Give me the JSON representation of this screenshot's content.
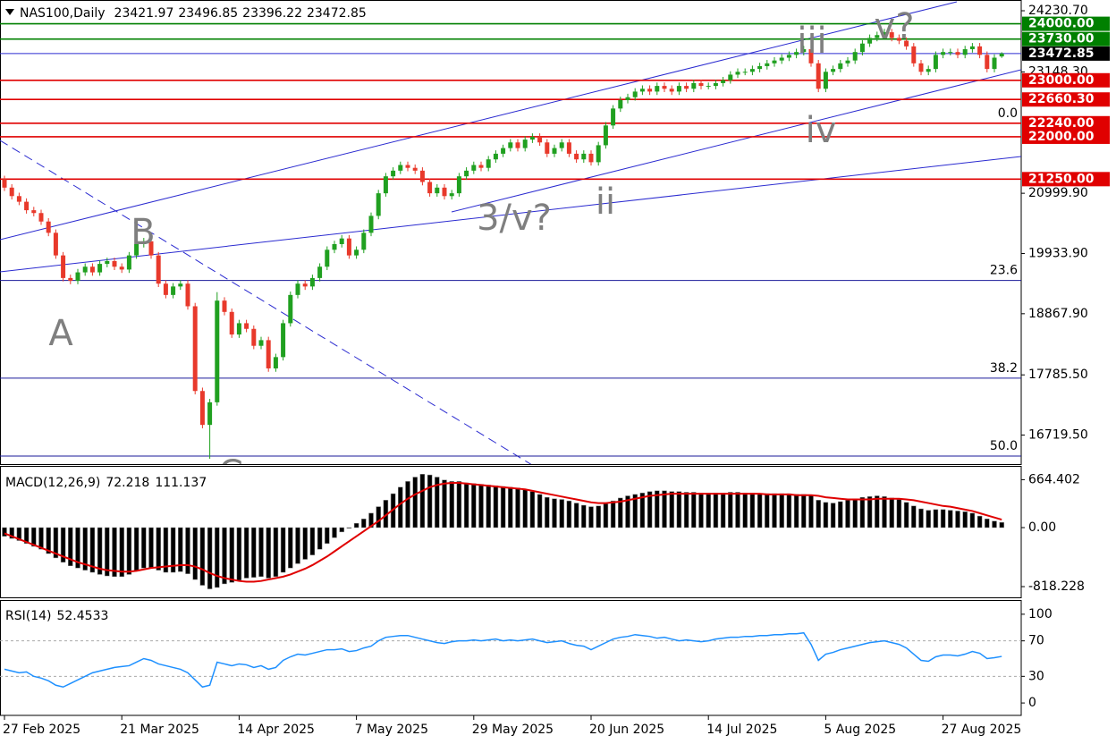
{
  "chart_data": [
    {
      "type": "candlestick",
      "title": "NAS100,Daily",
      "categories": [
        "27 Feb 2025",
        null,
        null,
        null,
        null,
        null,
        null,
        null,
        null,
        null,
        null,
        null,
        null,
        null,
        null,
        null,
        "21 Mar 2025",
        null,
        null,
        null,
        null,
        null,
        null,
        null,
        null,
        null,
        null,
        null,
        null,
        null,
        null,
        null,
        "14 Apr 2025",
        null,
        null,
        null,
        null,
        null,
        null,
        null,
        null,
        null,
        null,
        null,
        null,
        null,
        null,
        null,
        "7 May 2025",
        null,
        null,
        null,
        null,
        null,
        null,
        null,
        null,
        null,
        null,
        null,
        null,
        null,
        null,
        null,
        "29 May 2025",
        null,
        null,
        null,
        null,
        null,
        null,
        null,
        null,
        null,
        null,
        null,
        null,
        null,
        null,
        null,
        "20 Jun 2025",
        null,
        null,
        null,
        null,
        null,
        null,
        null,
        null,
        null,
        null,
        null,
        null,
        null,
        null,
        null,
        "14 Jul 2025",
        null,
        null,
        null,
        null,
        null,
        null,
        null,
        null,
        null,
        null,
        null,
        null,
        null,
        null,
        null,
        "5 Aug 2025",
        null,
        null,
        null,
        null,
        null,
        null,
        null,
        null,
        null,
        null,
        null,
        null,
        null,
        null,
        null,
        "27 Aug 2025",
        null,
        null,
        null,
        null,
        null,
        null,
        null,
        null
      ],
      "open": [
        21250,
        21100,
        20950,
        20850,
        20700,
        20650,
        20500,
        20300,
        19900,
        19500,
        19450,
        19600,
        19700,
        19600,
        19750,
        19800,
        19700,
        19650,
        19900,
        20100,
        20150,
        19900,
        19400,
        19200,
        19350,
        19400,
        19000,
        17500,
        16900,
        17300,
        19100,
        18900,
        18500,
        18700,
        18600,
        18300,
        18400,
        17900,
        18100,
        18700,
        19200,
        19400,
        19350,
        19500,
        19700,
        20000,
        20100,
        20200,
        19900,
        20000,
        20300,
        20600,
        21000,
        21300,
        21400,
        21500,
        21450,
        21400,
        21200,
        21000,
        21100,
        20950,
        21000,
        21300,
        21400,
        21500,
        21450,
        21600,
        21700,
        21800,
        21900,
        21800,
        21950,
        22000,
        21900,
        21700,
        21800,
        21900,
        21700,
        21600,
        21700,
        21550,
        21850,
        22200,
        22500,
        22650,
        22700,
        22800,
        22850,
        22800,
        22900,
        22850,
        22800,
        22900,
        22850,
        22950,
        22900,
        22900,
        22950,
        23000,
        23100,
        23150,
        23150,
        23200,
        23250,
        23300,
        23350,
        23400,
        23450,
        23500,
        23550,
        23300,
        22850,
        23150,
        23200,
        23300,
        23350,
        23500,
        23650,
        23750,
        23800,
        23850,
        23750,
        23700,
        23600,
        23300,
        23150,
        23200,
        23450,
        23500,
        23500,
        23450,
        23550,
        23600,
        23450,
        23200,
        23421.97
      ],
      "high": [
        21310,
        21160,
        21010,
        20910,
        20760,
        20710,
        20560,
        20360,
        19960,
        19560,
        19660,
        19760,
        19760,
        19810,
        19860,
        19860,
        19760,
        19960,
        20160,
        20210,
        20210,
        19960,
        19460,
        19410,
        19460,
        19460,
        19060,
        17560,
        17360,
        19250,
        19160,
        18960,
        18760,
        18760,
        18660,
        18460,
        18460,
        18160,
        18760,
        19260,
        19460,
        19460,
        19560,
        19760,
        20060,
        20160,
        20260,
        20260,
        20060,
        20360,
        20660,
        21060,
        21360,
        21460,
        21560,
        21560,
        21510,
        21460,
        21260,
        21160,
        21160,
        21060,
        21360,
        21460,
        21560,
        21560,
        21660,
        21760,
        21860,
        21960,
        21960,
        22010,
        22060,
        22060,
        21960,
        21860,
        21960,
        21960,
        21760,
        21760,
        21760,
        21910,
        22260,
        22560,
        22710,
        22760,
        22860,
        22910,
        22910,
        22960,
        22960,
        22910,
        22960,
        22960,
        23010,
        23010,
        22960,
        23010,
        23060,
        23160,
        23210,
        23210,
        23260,
        23310,
        23360,
        23410,
        23460,
        23510,
        23560,
        23610,
        23610,
        23360,
        23210,
        23260,
        23360,
        23410,
        23560,
        23710,
        23810,
        23860,
        23910,
        23910,
        23810,
        23760,
        23660,
        23360,
        23260,
        23510,
        23560,
        23560,
        23560,
        23610,
        23660,
        23660,
        23510,
        23460,
        23496.85
      ],
      "low": [
        21040,
        20890,
        20790,
        20640,
        20590,
        20440,
        20240,
        19840,
        19440,
        19390,
        19390,
        19540,
        19540,
        19540,
        19690,
        19640,
        19590,
        19590,
        19840,
        20040,
        19840,
        19340,
        19140,
        19140,
        19290,
        18940,
        17440,
        16840,
        16300,
        17240,
        18840,
        18440,
        18440,
        18540,
        18240,
        18240,
        17840,
        17840,
        18040,
        18640,
        19140,
        19290,
        19290,
        19440,
        19640,
        19940,
        20040,
        19840,
        19840,
        19940,
        20240,
        20540,
        20940,
        21240,
        21340,
        21390,
        21340,
        21140,
        20940,
        20940,
        20890,
        20890,
        20940,
        21240,
        21340,
        21390,
        21390,
        21540,
        21640,
        21740,
        21740,
        21740,
        21890,
        21840,
        21640,
        21640,
        21740,
        21640,
        21540,
        21540,
        21490,
        21490,
        21790,
        22140,
        22440,
        22590,
        22640,
        22740,
        22740,
        22740,
        22790,
        22740,
        22740,
        22790,
        22790,
        22840,
        22840,
        22840,
        22890,
        22940,
        23040,
        23090,
        23090,
        23140,
        23190,
        23240,
        23290,
        23340,
        23390,
        23440,
        23240,
        22790,
        22790,
        23090,
        23140,
        23240,
        23290,
        23440,
        23590,
        23690,
        23740,
        23690,
        23640,
        23540,
        23240,
        23090,
        23090,
        23140,
        23390,
        23440,
        23390,
        23390,
        23490,
        23390,
        23140,
        23140,
        23396.22
      ],
      "close": [
        21100,
        20950,
        20850,
        20700,
        20650,
        20500,
        20300,
        19900,
        19500,
        19450,
        19600,
        19700,
        19600,
        19750,
        19800,
        19700,
        19650,
        19900,
        20100,
        20150,
        19900,
        19400,
        19200,
        19350,
        19400,
        19000,
        17500,
        16900,
        17300,
        19100,
        18900,
        18500,
        18700,
        18600,
        18300,
        18400,
        17900,
        18100,
        18700,
        19200,
        19400,
        19350,
        19500,
        19700,
        20000,
        20100,
        20200,
        19900,
        20000,
        20300,
        20600,
        21000,
        21300,
        21400,
        21500,
        21450,
        21400,
        21200,
        21000,
        21100,
        20950,
        21000,
        21300,
        21400,
        21500,
        21450,
        21600,
        21700,
        21800,
        21900,
        21800,
        21950,
        22000,
        21900,
        21700,
        21800,
        21900,
        21700,
        21600,
        21700,
        21550,
        21850,
        22200,
        22500,
        22650,
        22700,
        22800,
        22850,
        22800,
        22900,
        22850,
        22800,
        22900,
        22850,
        22950,
        22900,
        22900,
        22950,
        23000,
        23100,
        23150,
        23150,
        23200,
        23250,
        23300,
        23350,
        23400,
        23450,
        23500,
        23550,
        23300,
        22850,
        23150,
        23200,
        23300,
        23350,
        23500,
        23650,
        23750,
        23800,
        23850,
        23750,
        23700,
        23600,
        23300,
        23150,
        23200,
        23450,
        23500,
        23500,
        23450,
        23550,
        23600,
        23450,
        23200,
        23400,
        23472.85
      ],
      "up_color": "#20a020",
      "down_color": "#e8392b",
      "price_line_color": "#2b2bd0",
      "ylim": [
        16206,
        24421
      ],
      "yticks": [
        {
          "value": 24230.7,
          "label": "24230.70"
        },
        {
          "value": 23148.3,
          "label": "23148.30"
        },
        {
          "value": 20999.9,
          "label": "20999.90"
        },
        {
          "value": 19933.9,
          "label": "19933.90"
        },
        {
          "value": 18867.9,
          "label": "18867.90"
        },
        {
          "value": 17785.5,
          "label": "17785.50"
        },
        {
          "value": 16719.5,
          "label": "16719.50"
        }
      ],
      "levels": [
        {
          "value": 24000,
          "label": "24000.00",
          "color": "#008000"
        },
        {
          "value": 23730,
          "label": "23730.00",
          "color": "#008000"
        },
        {
          "value": 23000,
          "label": "23000.00",
          "color": "#e00000"
        },
        {
          "value": 22660.3,
          "label": "22660.30",
          "color": "#e00000"
        },
        {
          "value": 22240,
          "label": "22240.00",
          "color": "#e00000"
        },
        {
          "value": 22000,
          "label": "22000.00",
          "color": "#e00000"
        },
        {
          "value": 21250,
          "label": "21250.00",
          "color": "#e00000"
        }
      ],
      "fib_levels": [
        {
          "level": "0.0",
          "price": 22240
        },
        {
          "level": "23.6",
          "price": 19457
        },
        {
          "level": "38.2",
          "price": 17728
        },
        {
          "level": "50.0",
          "price": 16348
        }
      ],
      "fib_color": "#1a1a9a",
      "annotations": [
        "A",
        "B",
        "C",
        "3/v?",
        "ii",
        "iii",
        "iv",
        "v?"
      ]
    },
    {
      "type": "macd",
      "title": "MACD(12,26,9)",
      "histogram": {
        "color": "#000000",
        "values": [
          -120,
          -150,
          -180,
          -220,
          -260,
          -300,
          -360,
          -420,
          -480,
          -530,
          -560,
          -590,
          -620,
          -650,
          -670,
          -680,
          -680,
          -650,
          -600,
          -560,
          -560,
          -590,
          -620,
          -620,
          -610,
          -640,
          -720,
          -800,
          -850,
          -830,
          -780,
          -760,
          -730,
          -700,
          -690,
          -680,
          -700,
          -680,
          -620,
          -560,
          -500,
          -440,
          -380,
          -300,
          -220,
          -140,
          -60,
          -10,
          60,
          120,
          200,
          290,
          380,
          470,
          560,
          640,
          700,
          740,
          730,
          700,
          660,
          640,
          640,
          620,
          610,
          600,
          590,
          580,
          570,
          560,
          550,
          530,
          500,
          460,
          420,
          400,
          390,
          370,
          340,
          310,
          290,
          300,
          330,
          370,
          410,
          440,
          460,
          480,
          500,
          510,
          510,
          500,
          500,
          490,
          490,
          480,
          480,
          480,
          480,
          490,
          490,
          480,
          480,
          470,
          470,
          470,
          470,
          470,
          460,
          460,
          450,
          380,
          350,
          340,
          360,
          380,
          400,
          420,
          430,
          440,
          430,
          410,
          390,
          350,
          300,
          260,
          240,
          250,
          250,
          240,
          230,
          220,
          200,
          160,
          120,
          90,
          72.218
        ]
      },
      "signal": {
        "color": "#e00000",
        "values": [
          -80,
          -120,
          -160,
          -200,
          -240,
          -280,
          -320,
          -360,
          -400,
          -440,
          -480,
          -510,
          -540,
          -570,
          -590,
          -600,
          -610,
          -610,
          -600,
          -580,
          -560,
          -550,
          -540,
          -530,
          -520,
          -520,
          -540,
          -580,
          -630,
          -670,
          -700,
          -720,
          -740,
          -750,
          -750,
          -740,
          -720,
          -700,
          -680,
          -650,
          -610,
          -570,
          -520,
          -460,
          -400,
          -330,
          -260,
          -190,
          -120,
          -50,
          20,
          90,
          170,
          250,
          330,
          400,
          460,
          510,
          560,
          590,
          610,
          620,
          620,
          610,
          600,
          590,
          580,
          570,
          560,
          550,
          540,
          530,
          510,
          490,
          470,
          450,
          430,
          410,
          390,
          370,
          350,
          340,
          340,
          350,
          360,
          380,
          400,
          420,
          440,
          450,
          460,
          470,
          470,
          470,
          470,
          470,
          470,
          470,
          470,
          470,
          470,
          470,
          470,
          470,
          460,
          460,
          460,
          460,
          450,
          450,
          450,
          440,
          420,
          410,
          400,
          390,
          390,
          390,
          390,
          400,
          400,
          400,
          400,
          390,
          380,
          360,
          340,
          320,
          300,
          290,
          270,
          250,
          230,
          200,
          170,
          140,
          111.137
        ]
      },
      "ylim": [
        -967,
        843
      ],
      "yticks": [
        664.402,
        {
          "value": 0,
          "label": "0.00"
        },
        -818.228
      ]
    },
    {
      "type": "rsi",
      "title": "RSI(14)",
      "color": "#1e90ff",
      "values": [
        38,
        36,
        34,
        35,
        30,
        28,
        25,
        20,
        18,
        22,
        26,
        30,
        34,
        36,
        38,
        40,
        41,
        42,
        46,
        50,
        48,
        44,
        42,
        40,
        38,
        34,
        26,
        18,
        20,
        46,
        44,
        42,
        44,
        43,
        40,
        42,
        38,
        40,
        48,
        52,
        55,
        54,
        56,
        58,
        60,
        60,
        61,
        58,
        59,
        62,
        64,
        70,
        74,
        75,
        76,
        76,
        74,
        72,
        70,
        68,
        67,
        69,
        70,
        70,
        71,
        70,
        71,
        72,
        70,
        71,
        70,
        71,
        72,
        70,
        68,
        69,
        70,
        67,
        65,
        64,
        60,
        64,
        68,
        72,
        74,
        75,
        77,
        76,
        75,
        73,
        74,
        72,
        70,
        71,
        70,
        69,
        70,
        72,
        73,
        74,
        74,
        75,
        75,
        76,
        76,
        77,
        77,
        78,
        78,
        79,
        66,
        48,
        55,
        57,
        60,
        62,
        64,
        66,
        68,
        69,
        70,
        68,
        66,
        62,
        55,
        48,
        47,
        52,
        54,
        54,
        53,
        55,
        58,
        56,
        50,
        51,
        52.4533
      ],
      "ylim": [
        -14,
        115
      ],
      "yticks": [
        100,
        70,
        30,
        0
      ],
      "levels": [
        70,
        30
      ]
    }
  ]
}
